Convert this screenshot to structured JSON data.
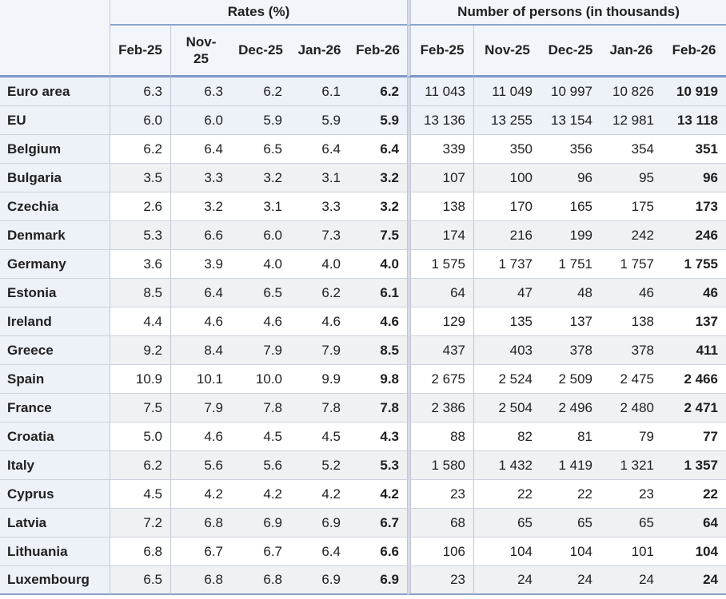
{
  "colors": {
    "accent_border": "#7e99c5",
    "header_bg": "#f2f5fa",
    "highlight_row_bg": "#edf1f8",
    "zebra_gray_bg": "#f0f1f3",
    "grid_line": "#c2c9d6"
  },
  "chart_data": {
    "type": "table",
    "title": "",
    "column_groups": [
      {
        "label": "Rates (%)",
        "columns": [
          "Feb-25",
          "Nov-25",
          "Dec-25",
          "Jan-26",
          "Feb-26"
        ]
      },
      {
        "label": "Number of persons (in thousands)",
        "columns": [
          "Feb-25",
          "Nov-25",
          "Dec-25",
          "Jan-26",
          "Feb-26"
        ]
      }
    ],
    "rows": [
      {
        "name": "Euro area",
        "aggregate": true,
        "rates": [
          "6.3",
          "6.3",
          "6.2",
          "6.1",
          "6.2"
        ],
        "persons": [
          "11 043",
          "11 049",
          "10 997",
          "10 826",
          "10 919"
        ]
      },
      {
        "name": "EU",
        "aggregate": true,
        "rates": [
          "6.0",
          "6.0",
          "5.9",
          "5.9",
          "5.9"
        ],
        "persons": [
          "13 136",
          "13 255",
          "13 154",
          "12 981",
          "13 118"
        ]
      },
      {
        "name": "Belgium",
        "aggregate": false,
        "rates": [
          "6.2",
          "6.4",
          "6.5",
          "6.4",
          "6.4"
        ],
        "persons": [
          "339",
          "350",
          "356",
          "354",
          "351"
        ]
      },
      {
        "name": "Bulgaria",
        "aggregate": false,
        "rates": [
          "3.5",
          "3.3",
          "3.2",
          "3.1",
          "3.2"
        ],
        "persons": [
          "107",
          "100",
          "96",
          "95",
          "96"
        ]
      },
      {
        "name": "Czechia",
        "aggregate": false,
        "rates": [
          "2.6",
          "3.2",
          "3.1",
          "3.3",
          "3.2"
        ],
        "persons": [
          "138",
          "170",
          "165",
          "175",
          "173"
        ]
      },
      {
        "name": "Denmark",
        "aggregate": false,
        "rates": [
          "5.3",
          "6.6",
          "6.0",
          "7.3",
          "7.5"
        ],
        "persons": [
          "174",
          "216",
          "199",
          "242",
          "246"
        ]
      },
      {
        "name": "Germany",
        "aggregate": false,
        "rates": [
          "3.6",
          "3.9",
          "4.0",
          "4.0",
          "4.0"
        ],
        "persons": [
          "1 575",
          "1 737",
          "1 751",
          "1 757",
          "1 755"
        ]
      },
      {
        "name": "Estonia",
        "aggregate": false,
        "rates": [
          "8.5",
          "6.4",
          "6.5",
          "6.2",
          "6.1"
        ],
        "persons": [
          "64",
          "47",
          "48",
          "46",
          "46"
        ]
      },
      {
        "name": "Ireland",
        "aggregate": false,
        "rates": [
          "4.4",
          "4.6",
          "4.6",
          "4.6",
          "4.6"
        ],
        "persons": [
          "129",
          "135",
          "137",
          "138",
          "137"
        ]
      },
      {
        "name": "Greece",
        "aggregate": false,
        "rates": [
          "9.2",
          "8.4",
          "7.9",
          "7.9",
          "8.5"
        ],
        "persons": [
          "437",
          "403",
          "378",
          "378",
          "411"
        ]
      },
      {
        "name": "Spain",
        "aggregate": false,
        "rates": [
          "10.9",
          "10.1",
          "10.0",
          "9.9",
          "9.8"
        ],
        "persons": [
          "2 675",
          "2 524",
          "2 509",
          "2 475",
          "2 466"
        ]
      },
      {
        "name": "France",
        "aggregate": false,
        "rates": [
          "7.5",
          "7.9",
          "7.8",
          "7.8",
          "7.8"
        ],
        "persons": [
          "2 386",
          "2 504",
          "2 496",
          "2 480",
          "2 471"
        ]
      },
      {
        "name": "Croatia",
        "aggregate": false,
        "rates": [
          "5.0",
          "4.6",
          "4.5",
          "4.5",
          "4.3"
        ],
        "persons": [
          "88",
          "82",
          "81",
          "79",
          "77"
        ]
      },
      {
        "name": "Italy",
        "aggregate": false,
        "rates": [
          "6.2",
          "5.6",
          "5.6",
          "5.2",
          "5.3"
        ],
        "persons": [
          "1 580",
          "1 432",
          "1 419",
          "1 321",
          "1 357"
        ]
      },
      {
        "name": "Cyprus",
        "aggregate": false,
        "rates": [
          "4.5",
          "4.2",
          "4.2",
          "4.2",
          "4.2"
        ],
        "persons": [
          "23",
          "22",
          "22",
          "23",
          "22"
        ]
      },
      {
        "name": "Latvia",
        "aggregate": false,
        "rates": [
          "7.2",
          "6.8",
          "6.9",
          "6.9",
          "6.7"
        ],
        "persons": [
          "68",
          "65",
          "65",
          "65",
          "64"
        ]
      },
      {
        "name": "Lithuania",
        "aggregate": false,
        "rates": [
          "6.8",
          "6.7",
          "6.7",
          "6.4",
          "6.6"
        ],
        "persons": [
          "106",
          "104",
          "104",
          "101",
          "104"
        ]
      },
      {
        "name": "Luxembourg",
        "aggregate": false,
        "rates": [
          "6.5",
          "6.8",
          "6.8",
          "6.9",
          "6.9"
        ],
        "persons": [
          "23",
          "24",
          "24",
          "24",
          "24"
        ]
      }
    ]
  }
}
